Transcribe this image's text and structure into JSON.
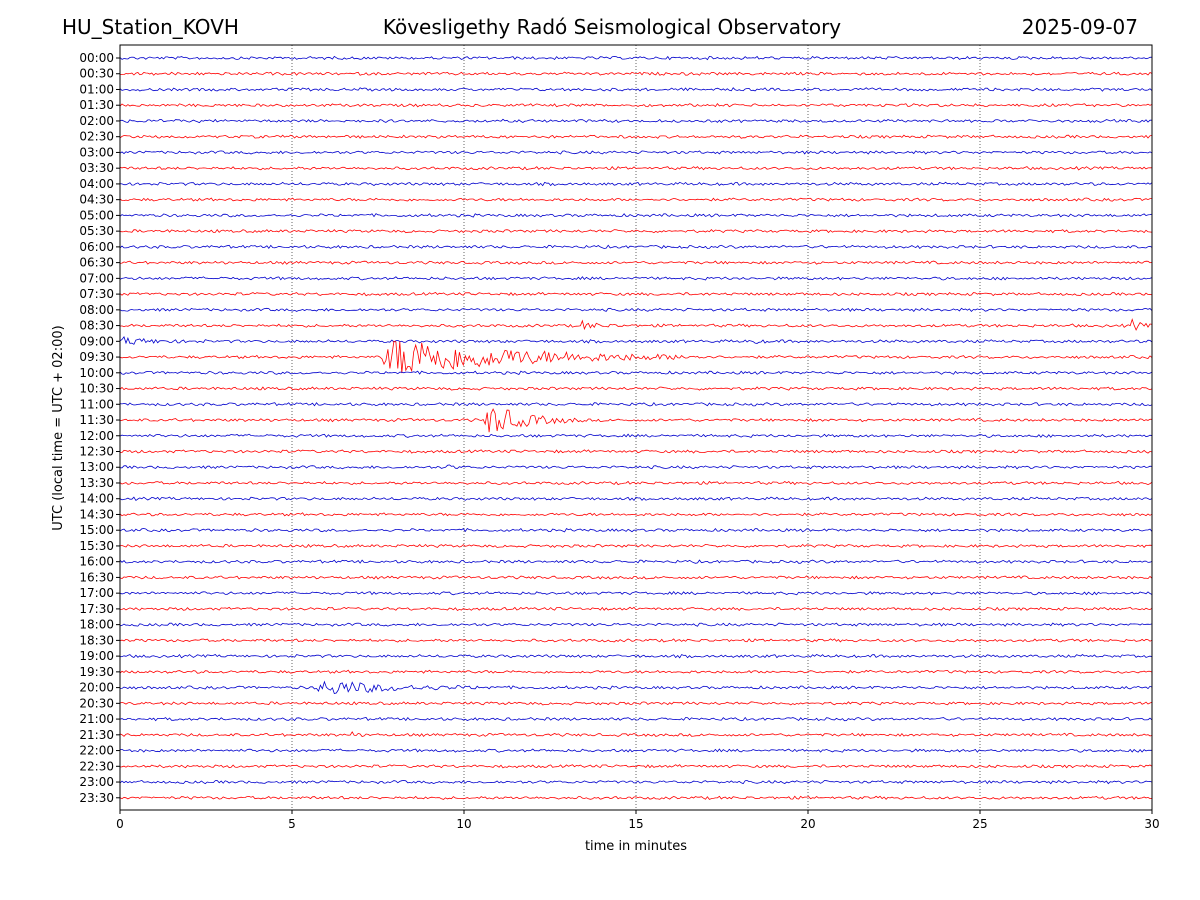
{
  "header": {
    "station": "HU_Station_KOVH",
    "observatory": "Kövesligethy Radó Seismological Observatory",
    "date": "2025-09-07"
  },
  "chart_data": {
    "type": "line",
    "xlabel": "time in minutes",
    "ylabel": "UTC (local time = UTC + 02:00)",
    "xlim": [
      0,
      30
    ],
    "x_ticks": [
      "0",
      "5",
      "10",
      "15",
      "20",
      "25",
      "30"
    ],
    "x_tick_values": [
      0,
      5,
      10,
      15,
      20,
      25,
      30
    ],
    "grid": "vertical dotted",
    "row_labels": [
      "00:00",
      "00:30",
      "01:00",
      "01:30",
      "02:00",
      "02:30",
      "03:00",
      "03:30",
      "04:00",
      "04:30",
      "05:00",
      "05:30",
      "06:00",
      "06:30",
      "07:00",
      "07:30",
      "08:00",
      "08:30",
      "09:00",
      "09:30",
      "10:00",
      "10:30",
      "11:00",
      "11:30",
      "12:00",
      "12:30",
      "13:00",
      "13:30",
      "14:00",
      "14:30",
      "15:00",
      "15:30",
      "16:00",
      "16:30",
      "17:00",
      "17:30",
      "18:00",
      "18:30",
      "19:00",
      "19:30",
      "20:00",
      "20:30",
      "21:00",
      "21:30",
      "22:00",
      "22:30",
      "23:00",
      "23:30"
    ],
    "colors": {
      "even_rows": "#0000cc",
      "odd_rows": "#ff0000"
    },
    "events": [
      {
        "row": "08:30",
        "start_min": 13.3,
        "end_min": 14.5,
        "peak": 0.35
      },
      {
        "row": "08:30",
        "start_min": 29.4,
        "end_min": 30,
        "peak": 0.45
      },
      {
        "row": "09:00",
        "start_min": 0,
        "end_min": 2.5,
        "peak": 0.25
      },
      {
        "row": "09:00",
        "start_min": 18.3,
        "end_min": 18.8,
        "peak": 0.25
      },
      {
        "row": "09:30",
        "start_min": 7.6,
        "end_min": 17,
        "peak": 1.6
      },
      {
        "row": "11:30",
        "start_min": 10.6,
        "end_min": 13.5,
        "peak": 1.2
      },
      {
        "row": "20:00",
        "start_min": 5.7,
        "end_min": 11,
        "peak": 0.55
      },
      {
        "row": "21:30",
        "start_min": 6.7,
        "end_min": 7.2,
        "peak": 0.2
      },
      {
        "row": "13:00",
        "start_min": 9.5,
        "end_min": 10,
        "peak": 0.15
      }
    ]
  }
}
